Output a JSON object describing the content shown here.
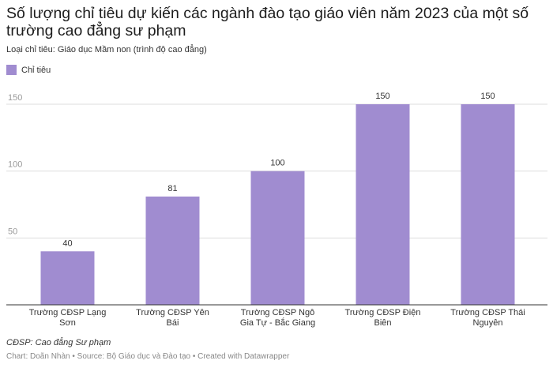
{
  "title": "Số lượng chỉ tiêu dự kiến các ngành đào tạo giáo viên năm 2023 của một số trường cao đẳng sư phạm",
  "subtitle": "Loại chỉ tiêu: Giáo dục Mầm non (trình độ cao đẳng)",
  "legend": {
    "label": "Chỉ tiêu",
    "color": "#a08cd0"
  },
  "note": "CĐSP: Cao đẳng Sư phạm",
  "footer": "Chart: Doãn Nhàn • Source: Bộ Giáo dục và Đào tạo • Created with Datawrapper",
  "chart_data": {
    "type": "bar",
    "title": "Số lượng chỉ tiêu dự kiến các ngành đào tạo giáo viên năm 2023 của một số trường cao đẳng sư phạm",
    "categories": [
      "Trường CĐSP Lạng Sơn",
      "Trường CĐSP Yên Bái",
      "Trường CĐSP Ngô Gia Tự - Bắc Giang",
      "Trường CĐSP Điện Biên",
      "Trường CĐSP Thái Nguyên"
    ],
    "series": [
      {
        "name": "Chỉ tiêu",
        "values": [
          40,
          81,
          100,
          150,
          150
        ]
      }
    ],
    "yticks": [
      50,
      100,
      150
    ],
    "ylim": [
      0,
      150
    ],
    "xlabel": "",
    "ylabel": "",
    "grid": true,
    "colors": {
      "bar": "#a08cd0",
      "grid": "#dddddd",
      "baseline": "#333333"
    }
  }
}
